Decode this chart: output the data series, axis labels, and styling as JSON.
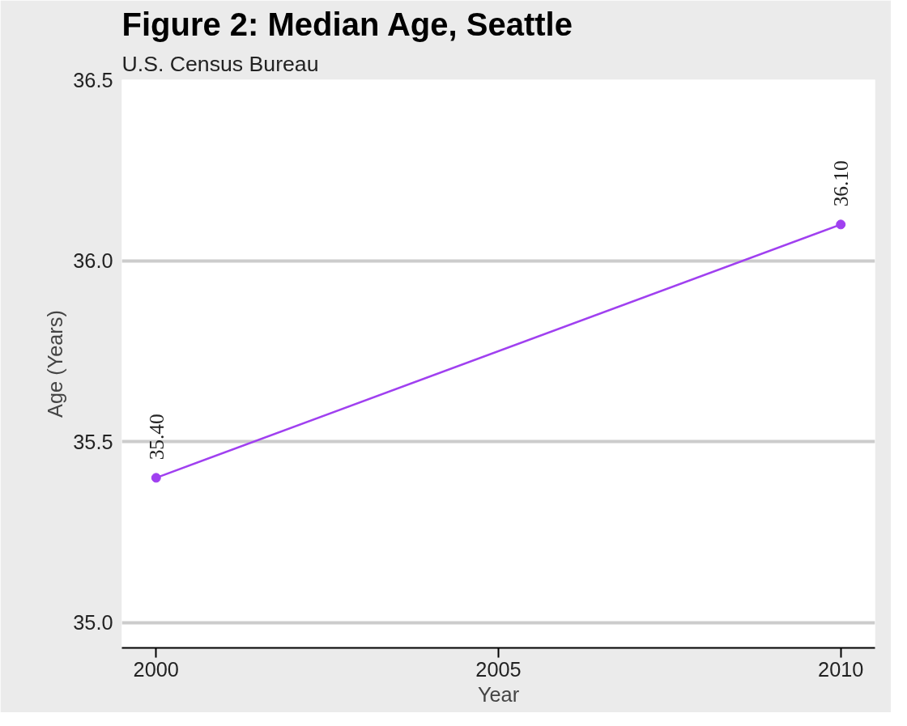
{
  "chart_data": {
    "type": "line",
    "title": "Figure 2: Median Age, Seattle",
    "subtitle": "U.S. Census Bureau",
    "xlabel": "Year",
    "ylabel": "Age (Years)",
    "x": [
      2000,
      2010
    ],
    "series": [
      {
        "color": "#a040f0",
        "values": [
          35.4,
          36.1
        ],
        "value_labels": [
          "35.40",
          "36.10"
        ]
      }
    ],
    "xlim": [
      1999.5,
      2010.5
    ],
    "xticks": [
      2000,
      2005,
      2010
    ],
    "ylim": [
      34.93,
      36.5
    ],
    "yticks": [
      {
        "value": 35.0,
        "label": "35.0"
      },
      {
        "value": 35.5,
        "label": "35.5"
      },
      {
        "value": 36.0,
        "label": "36.0"
      },
      {
        "value": 36.5,
        "label": "36.5"
      }
    ],
    "grid": "y",
    "marker": "circle",
    "line_style": "solid"
  }
}
